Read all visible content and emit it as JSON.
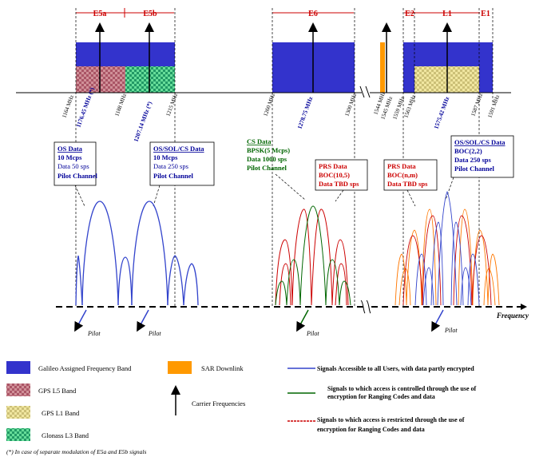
{
  "bands": {
    "e5a": "E5a",
    "e5b": "E5b",
    "e6": "E6",
    "e2": "E2",
    "l1": "L1",
    "e1": "E1"
  },
  "freq_labels": {
    "f1164": "1164 MHz",
    "f1176": "1176.45 MHz (*)",
    "f1188": "1188 MHz",
    "f1207": "1207.14 MHz (*)",
    "f1215": "1215 MHz",
    "f1260": "1260 MHz",
    "f1278": "1278.75 MHz",
    "f1300": "1300 MHz",
    "f1544": "1544 MHz",
    "f1545": "1545 MHz",
    "f1559": "1559 MHz",
    "f1563": "1563 MHz",
    "f1575": "1575.42 MHz",
    "f1587": "1587 MHz",
    "f1591": "1591 MHz"
  },
  "callouts": {
    "os_data": {
      "title": "OS Data",
      "l1": "10 Mcps",
      "l2": "Data 50 sps",
      "l3": "Pilot Channel"
    },
    "os_sol": {
      "title": "OS/SOL/CS Data",
      "l1": "10 Mcps",
      "l2": "Data 250 sps",
      "l3": "Pilot Channel"
    },
    "cs_data": {
      "title": "CS Data",
      "l1": "BPSK(5 Mcps)",
      "l2": "Data 1000 sps",
      "l3": "Pilot Channel"
    },
    "prs_e6": {
      "title": "PRS Data",
      "l1": "BOC(10,5)",
      "l2": "Data TBD sps"
    },
    "prs_l1": {
      "title": "PRS Data",
      "l1": "BOC(n,m)",
      "l2": "Data TBD sps"
    },
    "os_l1": {
      "title": "OS/SOL/CS Data",
      "l1": "BOC(2,2)",
      "l2": "Data 250 sps",
      "l3": "Pilot Channel"
    }
  },
  "pilot_labels": {
    "p1": "Pilot",
    "p2": "Pilot",
    "p3": "Pilot",
    "p4": "Pilot"
  },
  "axis": {
    "frequency": "Frequency"
  },
  "legend": {
    "galileo": "Galileo Assigned Frequency Band",
    "gps_l5": "GPS L5 Band",
    "gps_l1": "GPS L1 Band",
    "glonass": "Glonass L3 Band",
    "sar": "SAR Downlink",
    "carrier": "Carrier Frequencies",
    "blue": "Signals Accessible to all Users, with data partly encrypted",
    "green_1": "Signals to which access is controlled  through the use of",
    "green_2": "encryption for Ranging Codes and data",
    "red_1": "Signals to which access is restricted through the use of",
    "red_2": "encryption for Ranging Codes and data",
    "footnote": "(*) In case of separate modulation of E5a and E5b signals"
  },
  "colors": {
    "galileo": "#3333cc",
    "sar": "#ff9900",
    "band_label": "#cc0000",
    "blue_signal": "#3344cc",
    "green_signal": "#006600",
    "red_signal": "#cc0000",
    "orange_signal": "#ff7700",
    "cs_text": "#006600",
    "prs_text": "#cc0000",
    "os_text": "#000099"
  }
}
